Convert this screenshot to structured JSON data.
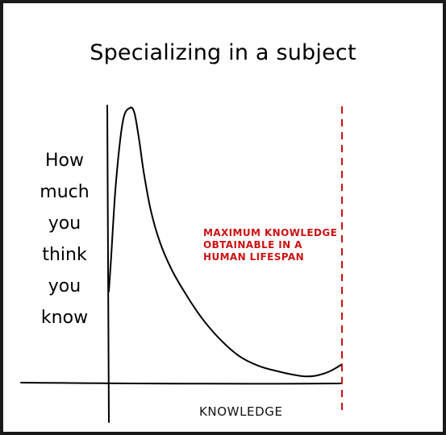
{
  "chart_data": {
    "type": "line",
    "title": "Specializing in a subject",
    "ylabel_lines": [
      "How",
      "much",
      "you",
      "think",
      "you",
      "know"
    ],
    "xlabel": "KNOWLEDGE",
    "xlim": [
      0,
      1
    ],
    "ylim": [
      0,
      1
    ],
    "series": [
      {
        "x": [
          0,
          0.01,
          0.03,
          0.06,
          0.09,
          0.11,
          0.13,
          0.15,
          0.18,
          0.22,
          0.27,
          0.33,
          0.4,
          0.48,
          0.56,
          0.64,
          0.72,
          0.8,
          0.85,
          0.9,
          0.95,
          1.0
        ],
        "y": [
          0.32,
          0.45,
          0.72,
          0.95,
          1.0,
          0.98,
          0.88,
          0.76,
          0.62,
          0.5,
          0.4,
          0.31,
          0.22,
          0.14,
          0.08,
          0.045,
          0.025,
          0.01,
          0.005,
          0.01,
          0.025,
          0.05
        ]
      }
    ],
    "annotation": {
      "lines": [
        "MAXIMUM KNOWLEDGE",
        "OBTAINABLE IN A",
        "HUMAN LIFESPAN"
      ],
      "color": "#cc1111"
    },
    "limit_line": {
      "x": 1.0,
      "color": "#cc1111",
      "style": "dashed"
    },
    "grid": false
  }
}
